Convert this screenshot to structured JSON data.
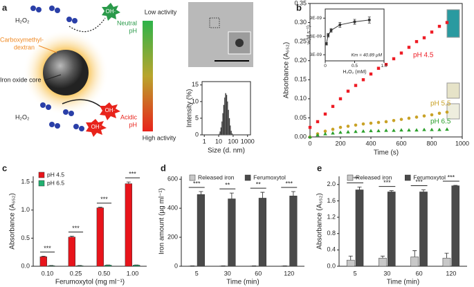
{
  "panel_labels": [
    "a",
    "b",
    "c",
    "d",
    "e"
  ],
  "schematic": {
    "h2o2_top": "H₂O₂",
    "oh_top": "OH·",
    "shell_label": [
      "Carboxymethyl-",
      "dextran"
    ],
    "core_label": "Iron oxide core",
    "low_activity": "Low activity",
    "neutral_ph": [
      "Neutral",
      "pH"
    ],
    "high_activity": "High activity",
    "acidic_ph": [
      "Acidic",
      "pH"
    ],
    "h2o2_bottom": "H₂O₂",
    "oh_bottom": [
      "OH·",
      "OH·"
    ]
  },
  "chart_data": [
    {
      "type": "histogram",
      "xlabel": "Size (d. nm)",
      "ylabel": "Intensity (%)",
      "bins": [
        10.1,
        11.7,
        13.5,
        15.7,
        18.2,
        21.0,
        24.4,
        28.2,
        32.7,
        37.8,
        43.8,
        50.7,
        58.8,
        68.1,
        78.8,
        91.3
      ],
      "values": [
        0.3,
        1,
        2.2,
        4,
        6.5,
        9,
        11.2,
        12.5,
        12,
        10,
        7.5,
        5,
        2.8,
        1.2,
        0.4
      ],
      "color": "#333333",
      "log_x": true,
      "xlim": [
        0.7,
        1600
      ],
      "xticks": [
        1,
        10,
        100,
        1000
      ],
      "ylim": [
        0,
        16
      ],
      "yticks": [
        0,
        5,
        10,
        15
      ]
    },
    {
      "type": "line",
      "xlabel": "Time (s)",
      "ylabel": "Absorbance (A₆₅₂)",
      "x": [
        0,
        50,
        100,
        150,
        200,
        250,
        300,
        350,
        400,
        450,
        500,
        550,
        600,
        650,
        700,
        750,
        800,
        850,
        900
      ],
      "series": [
        {
          "name": "pH 4.5",
          "color": "#ee1c25",
          "marker": "square",
          "values": [
            0.025,
            0.04,
            0.06,
            0.08,
            0.1,
            0.12,
            0.135,
            0.15,
            0.165,
            0.18,
            0.19,
            0.205,
            0.22,
            0.235,
            0.25,
            0.26,
            0.275,
            0.29,
            0.3
          ]
        },
        {
          "name": "pH 5.5",
          "color": "#c9a227",
          "marker": "circle",
          "values": [
            0,
            0.008,
            0.015,
            0.02,
            0.025,
            0.028,
            0.031,
            0.034,
            0.036,
            0.038,
            0.04,
            0.043,
            0.046,
            0.049,
            0.052,
            0.055,
            0.058,
            0.062,
            0.065
          ]
        },
        {
          "name": "pH 6.5",
          "color": "#2ca02c",
          "marker": "triangle",
          "values": [
            0,
            0.005,
            0.008,
            0.01,
            0.012,
            0.013,
            0.014,
            0.015,
            0.016,
            0.016,
            0.017,
            0.017,
            0.018,
            0.018,
            0.018,
            0.019,
            0.019,
            0.019,
            0.02
          ]
        }
      ],
      "xlim": [
        0,
        1000
      ],
      "xticks": [
        0,
        200,
        400,
        600,
        800,
        1000
      ],
      "ylim": [
        0,
        0.35
      ],
      "yticks": [
        {
          "value": 0,
          "label": "0.00"
        },
        0.05,
        {
          "value": 0.1,
          "label": "0.10"
        },
        0.15,
        {
          "value": 0.2,
          "label": "0.20"
        },
        0.25,
        {
          "value": 0.3,
          "label": "0.30"
        },
        0.35
      ]
    },
    {
      "type": "scatter",
      "xlabel": "H₂O₂ (mM)",
      "ylabel": "v (M s⁻¹)",
      "annotation": "Km = 40.89 µM",
      "x": [
        0.02,
        0.05,
        0.1,
        0.25,
        0.5,
        0.75
      ],
      "values": [
        4.8e-09,
        6.2e-09,
        7e-09,
        7.9e-09,
        8.4e-09,
        8.7e-09
      ],
      "errors": [
        2e-10,
        3e-10,
        3e-10,
        4e-10,
        4e-10,
        5e-10
      ],
      "color": "#333333",
      "xlim": [
        0,
        1
      ],
      "xticks": [
        0,
        0.5,
        {
          "value": 1,
          "label": "1.0"
        }
      ],
      "ylim": [
        2e-09,
        1.05e-08
      ],
      "yticks": [
        {
          "value": 3e-09,
          "label": "3E-09"
        },
        {
          "value": 6e-09,
          "label": "6E-09"
        },
        {
          "value": 9e-09,
          "label": "9E-09"
        }
      ]
    },
    {
      "type": "bar",
      "xlabel": "Ferumoxytol (mg ml⁻¹)",
      "ylabel": "Absorbance (A₆₅₂)",
      "categories": [
        "0.10",
        "0.25",
        "0.50",
        "1.00"
      ],
      "series": [
        {
          "name": "pH 4.5",
          "color": "#e8141b",
          "values": [
            0.17,
            0.52,
            1.04,
            1.47
          ],
          "errors": [
            0.01,
            0.015,
            0.01,
            0.03
          ]
        },
        {
          "name": "pH 6.5",
          "color": "#20b070",
          "values": [
            0.01,
            0.01,
            0.02,
            0.02
          ],
          "errors": [
            0.003,
            0.003,
            0.003,
            0.003
          ]
        }
      ],
      "significance": [
        "***",
        "***",
        "***",
        "***"
      ],
      "legend": "upper left",
      "ylim": [
        0,
        1.6
      ],
      "yticks": [
        {
          "value": 0,
          "label": "0.0"
        },
        0.5,
        {
          "value": 1,
          "label": "1.0"
        },
        1.5
      ]
    },
    {
      "type": "bar",
      "xlabel": "Time (min)",
      "ylabel": "Iron amount (µg ml⁻¹)",
      "categories": [
        "5",
        "30",
        "60",
        "120"
      ],
      "series": [
        {
          "name": "Released iron",
          "color": "#c8c8c8",
          "values": [
            2,
            2,
            2,
            2
          ],
          "errors": [
            1,
            1,
            1,
            1
          ]
        },
        {
          "name": "Ferumoxytol",
          "color": "#4a4a4a",
          "values": [
            495,
            465,
            470,
            485
          ],
          "errors": [
            20,
            40,
            40,
            30
          ]
        }
      ],
      "significance": [
        "***",
        "**",
        "**",
        "***"
      ],
      "legend": "upper center",
      "ylim": [
        0,
        620
      ],
      "yticks": [
        0,
        200,
        400,
        600
      ]
    },
    {
      "type": "bar",
      "xlabel": "Time (min)",
      "ylabel": "Absorbance (A₆₅₂)",
      "categories": [
        "5",
        "30",
        "60",
        "120"
      ],
      "series": [
        {
          "name": "Released iron",
          "color": "#c8c8c8",
          "values": [
            0.15,
            0.2,
            0.23,
            0.2
          ],
          "errors": [
            0.1,
            0.05,
            0.15,
            0.12
          ]
        },
        {
          "name": "Ferumoxytol",
          "color": "#4a4a4a",
          "values": [
            1.87,
            1.82,
            1.82,
            1.97
          ],
          "errors": [
            0.07,
            0.03,
            0.05,
            0.01
          ]
        }
      ],
      "significance": [
        "***",
        "***",
        "***",
        "***"
      ],
      "legend": "upper center",
      "ylim": [
        0,
        2.2
      ],
      "yticks": [
        {
          "value": 0,
          "label": "0.0"
        },
        0.4,
        0.8,
        1.2,
        1.6,
        {
          "value": 2,
          "label": "2.0"
        }
      ]
    }
  ]
}
